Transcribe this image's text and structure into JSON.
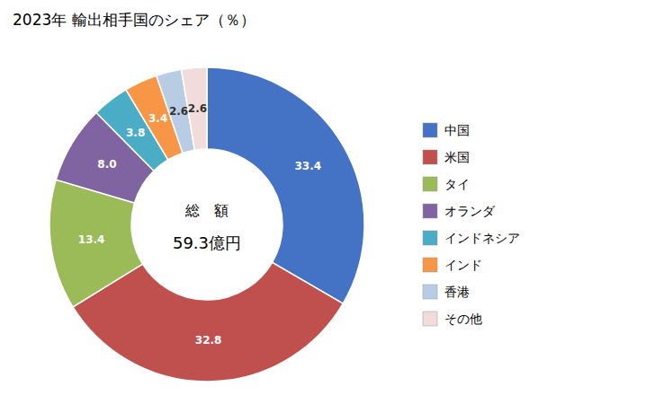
{
  "chart_data": {
    "type": "donut",
    "title": "2023年 輸出相手国のシェア（％）",
    "annotations": [
      "総　額",
      "59.3億円"
    ],
    "categories": [
      "中国",
      "米国",
      "タイ",
      "オランダ",
      "インドネシア",
      "インド",
      "香港",
      "その他"
    ],
    "values": [
      33.4,
      32.8,
      13.4,
      8.0,
      3.8,
      3.4,
      2.6,
      2.6
    ],
    "value_labels": [
      "33.4",
      "32.8",
      "13.4",
      "8.0",
      "3.8",
      "3.4",
      "2.6",
      "2.6"
    ],
    "colors": [
      "#4472C4",
      "#C0504D",
      "#9BBB59",
      "#8064A2",
      "#4BACC6",
      "#F79646",
      "#B8CCE4",
      "#F2DCDB"
    ],
    "data_labels": true,
    "legend": "right"
  }
}
